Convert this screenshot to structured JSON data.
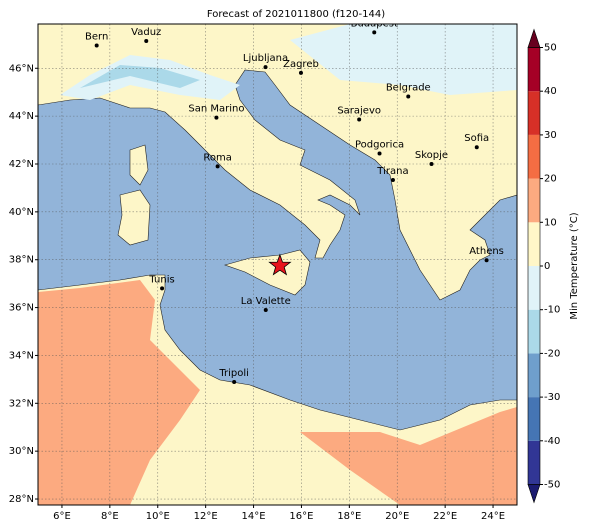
{
  "chart_data": {
    "type": "map",
    "title": "Forecast of 2021011800 (f120-144)",
    "xlim": [
      5,
      25
    ],
    "ylim": [
      27.75,
      47.85
    ],
    "xticks": [
      {
        "value": 6,
        "label": "6°E"
      },
      {
        "value": 8,
        "label": "8°E"
      },
      {
        "value": 10,
        "label": "10°E"
      },
      {
        "value": 12,
        "label": "12°E"
      },
      {
        "value": 14,
        "label": "14°E"
      },
      {
        "value": 16,
        "label": "16°E"
      },
      {
        "value": 18,
        "label": "18°E"
      },
      {
        "value": 20,
        "label": "20°E"
      },
      {
        "value": 22,
        "label": "22°E"
      },
      {
        "value": 24,
        "label": "24°E"
      }
    ],
    "yticks": [
      {
        "value": 28,
        "label": "28°N"
      },
      {
        "value": 30,
        "label": "30°N"
      },
      {
        "value": 32,
        "label": "32°N"
      },
      {
        "value": 34,
        "label": "34°N"
      },
      {
        "value": 36,
        "label": "36°N"
      },
      {
        "value": 38,
        "label": "38°N"
      },
      {
        "value": 40,
        "label": "40°N"
      },
      {
        "value": 42,
        "label": "42°N"
      },
      {
        "value": 44,
        "label": "44°N"
      },
      {
        "value": 46,
        "label": "46°N"
      }
    ],
    "grid": true,
    "cities": [
      {
        "name": "Bern",
        "lon": 7.45,
        "lat": 46.95
      },
      {
        "name": "Vaduz",
        "lon": 9.52,
        "lat": 47.14
      },
      {
        "name": "Budapest",
        "lon": 19.04,
        "lat": 47.5
      },
      {
        "name": "Ljubljana",
        "lon": 14.5,
        "lat": 46.05
      },
      {
        "name": "Zagreb",
        "lon": 15.98,
        "lat": 45.81
      },
      {
        "name": "Belgrade",
        "lon": 20.46,
        "lat": 44.82
      },
      {
        "name": "San Marino",
        "lon": 12.45,
        "lat": 43.94
      },
      {
        "name": "Sarajevo",
        "lon": 18.41,
        "lat": 43.86
      },
      {
        "name": "Sofia",
        "lon": 23.32,
        "lat": 42.7
      },
      {
        "name": "Podgorica",
        "lon": 19.26,
        "lat": 42.44
      },
      {
        "name": "Skopje",
        "lon": 21.43,
        "lat": 42.0
      },
      {
        "name": "Roma",
        "lon": 12.5,
        "lat": 41.9
      },
      {
        "name": "Tirana",
        "lon": 19.82,
        "lat": 41.33
      },
      {
        "name": "Athens",
        "lon": 23.73,
        "lat": 37.98
      },
      {
        "name": "Tunis",
        "lon": 10.18,
        "lat": 36.8
      },
      {
        "name": "La Valette",
        "lon": 14.51,
        "lat": 35.9
      },
      {
        "name": "Tripoli",
        "lon": 13.19,
        "lat": 32.89
      }
    ],
    "marker": {
      "lon": 15.1,
      "lat": 37.75,
      "color": "#e8141c"
    },
    "colorbar": {
      "label": "Min Temperature (°C)",
      "lim": [
        -50,
        50
      ],
      "ticks": [
        50,
        40,
        30,
        20,
        10,
        0,
        -10,
        -20,
        -30,
        -40,
        -50
      ],
      "colors": [
        "#313695",
        "#4575b4",
        "#6f9fcc",
        "#abd9e9",
        "#e0f3f8",
        "#fff7c8",
        "#fcaa80",
        "#f46d43",
        "#d73027",
        "#a50026"
      ],
      "under": "#1b1b70",
      "over": "#67001f"
    }
  }
}
